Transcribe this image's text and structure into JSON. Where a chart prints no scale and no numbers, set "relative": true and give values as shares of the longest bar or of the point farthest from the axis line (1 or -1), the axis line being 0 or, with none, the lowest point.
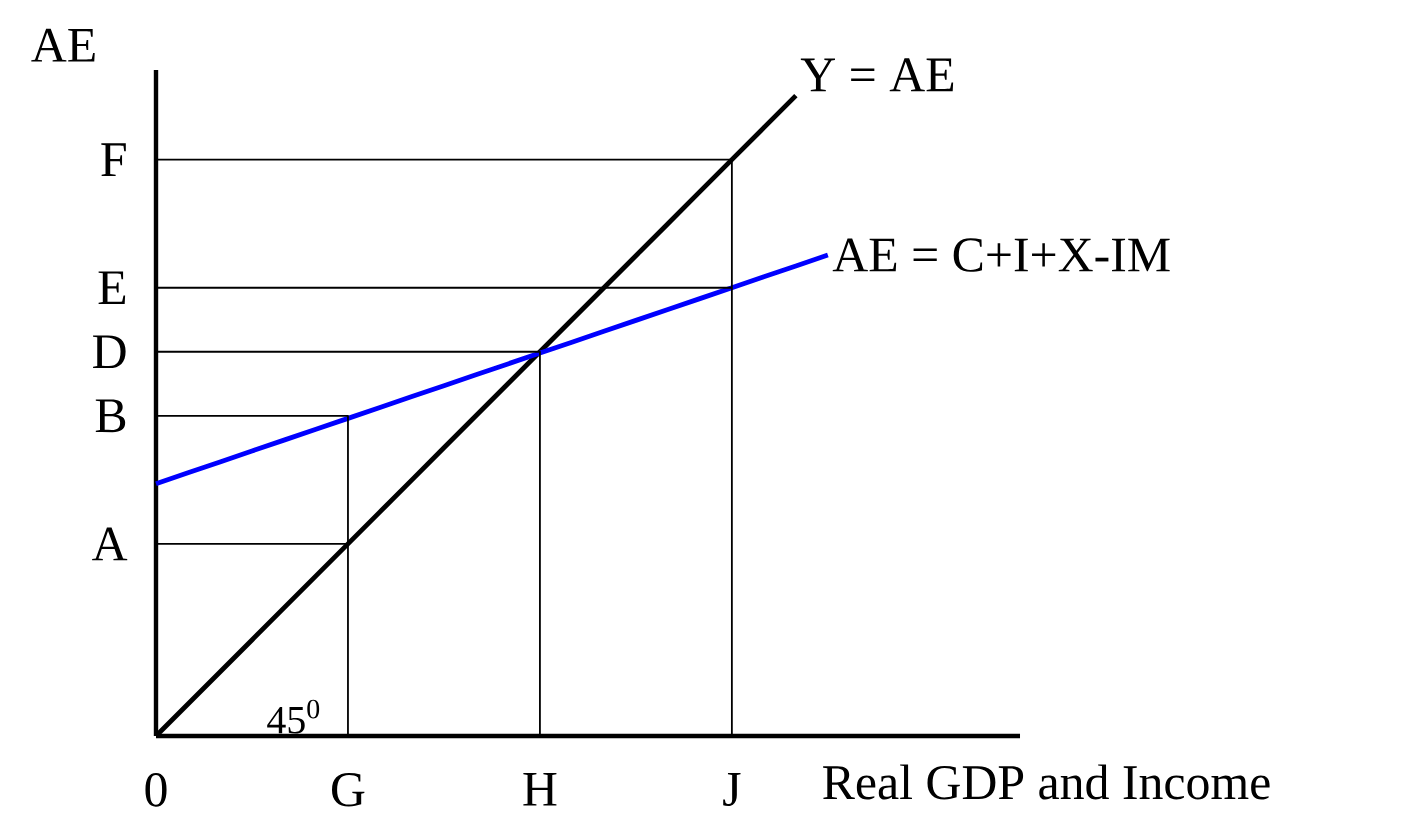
{
  "chart_data": {
    "type": "line",
    "relative": true,
    "xlabel": "Real GDP and Income",
    "ylabel": "AE",
    "categories": [
      "0",
      null,
      null,
      null,
      null,
      null,
      "G",
      null,
      null,
      null,
      null,
      null,
      "H",
      null,
      null,
      null,
      null,
      null,
      "J",
      null,
      null,
      null
    ],
    "annotations": [
      "45$^{0}$",
      {
        "text": "A",
        "x": "0",
        "y": 0.3
      },
      {
        "text": "B",
        "x": "0",
        "y": 0.5
      },
      {
        "text": "D",
        "x": "0",
        "y": 0.6
      },
      {
        "text": "E",
        "x": "0",
        "y": 0.7
      },
      {
        "text": "F",
        "x": "0",
        "y": 0.9
      }
    ],
    "marker": "none",
    "line_style": "solid",
    "series": [
      {
        "name": "Y = AE",
        "color": "#000000",
        "values": [
          0,
          0.05,
          0.1,
          0.15,
          0.2,
          0.25,
          0.3,
          0.35,
          0.4,
          0.45,
          0.5,
          0.55,
          0.6,
          0.65,
          0.7,
          0.75,
          0.8,
          0.85,
          0.9,
          0.95,
          1,
          null
        ]
      },
      {
        "name": "AE = C+I+X-IM",
        "color": "#0000ff",
        "values": [
          0.394,
          0.411,
          0.428,
          0.445,
          0.462,
          0.479,
          0.496,
          0.513,
          0.53,
          0.547,
          0.564,
          0.581,
          0.598,
          0.615,
          0.632,
          0.649,
          0.666,
          0.683,
          0.7,
          0.717,
          0.734,
          0.751
        ]
      },
      {
        "color": "#000000",
        "x": [
          "0",
          "J",
          "J"
        ],
        "values": [
          0.9,
          0.9,
          0
        ]
      },
      {
        "color": "#000000",
        "x": [
          "0",
          "J"
        ],
        "values": [
          0.7,
          0.7
        ]
      },
      {
        "color": "#000000",
        "x": [
          "0",
          "H",
          "H"
        ],
        "values": [
          0.6,
          0.6,
          0
        ]
      },
      {
        "color": "#000000",
        "x": [
          "0",
          "G",
          "G"
        ],
        "values": [
          0.5,
          0.5,
          0
        ]
      },
      {
        "color": "#000000",
        "x": [
          "0",
          "G"
        ],
        "values": [
          0.3,
          0.3
        ]
      }
    ]
  }
}
